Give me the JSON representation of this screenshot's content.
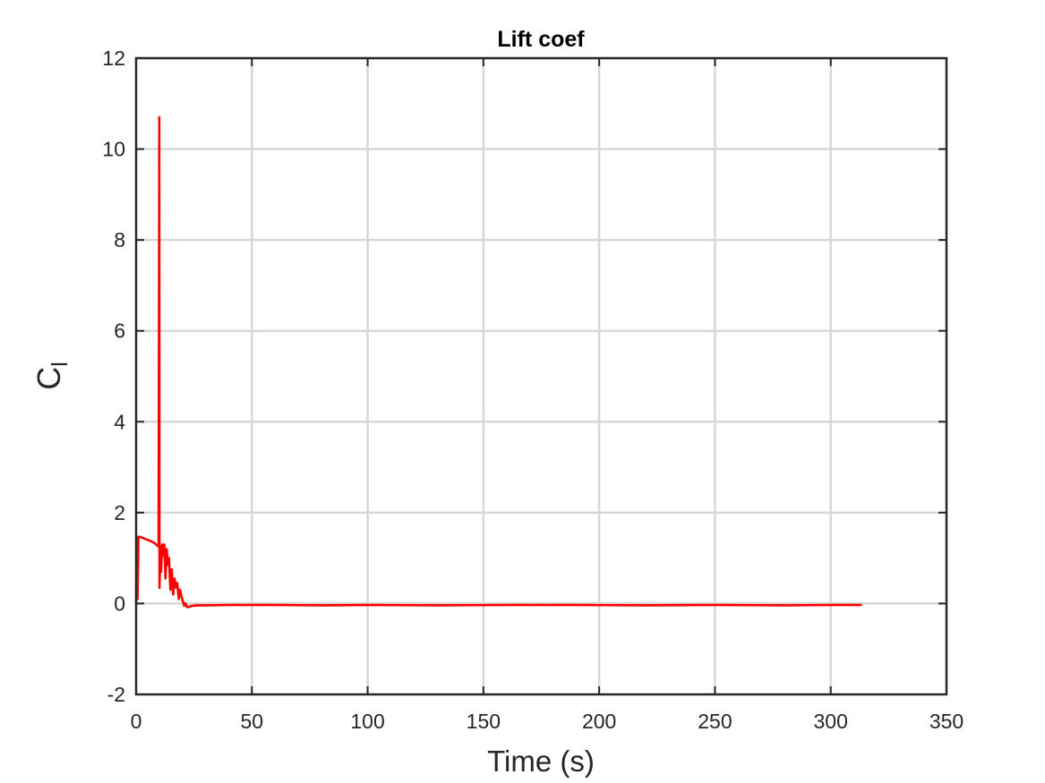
{
  "chart_data": {
    "type": "line",
    "title": "Lift coef",
    "xlabel": "Time (s)",
    "ylabel": {
      "main": "C",
      "sub": "l"
    },
    "xlim": [
      0,
      350
    ],
    "ylim": [
      -2,
      12
    ],
    "xticks": [
      0,
      50,
      100,
      150,
      200,
      250,
      300,
      350
    ],
    "yticks": [
      -2,
      0,
      2,
      4,
      6,
      8,
      10,
      12
    ],
    "grid": true,
    "series": [
      {
        "color": "#ff0000",
        "x": [
          0,
          0.3,
          0.6,
          1,
          2,
          4,
          6,
          8,
          9.7,
          10,
          10.1,
          10.5,
          10.8,
          11.2,
          11.7,
          12.2,
          12.7,
          13.2,
          13.7,
          14.2,
          14.8,
          15.4,
          16,
          16.6,
          17.2,
          17.8,
          18.4,
          19,
          19.6,
          20.2,
          20.8,
          21.4,
          22,
          23,
          24,
          25,
          27,
          30,
          40,
          60,
          80,
          100,
          130,
          160,
          190,
          220,
          250,
          280,
          300,
          313
        ],
        "y": [
          0,
          1.45,
          0.1,
          1.47,
          1.46,
          1.42,
          1.38,
          1.33,
          1.25,
          10.7,
          0.35,
          1.25,
          0.7,
          1.3,
          1.05,
          1.3,
          0.55,
          1.2,
          0.85,
          1.0,
          0.3,
          0.75,
          0.2,
          0.55,
          0.35,
          0.45,
          0.1,
          0.3,
          0.15,
          0.05,
          -0.05,
          0.0,
          -0.08,
          -0.07,
          -0.05,
          -0.05,
          -0.04,
          -0.04,
          -0.03,
          -0.03,
          -0.04,
          -0.03,
          -0.04,
          -0.03,
          -0.03,
          -0.04,
          -0.03,
          -0.04,
          -0.03,
          -0.03
        ]
      }
    ]
  }
}
